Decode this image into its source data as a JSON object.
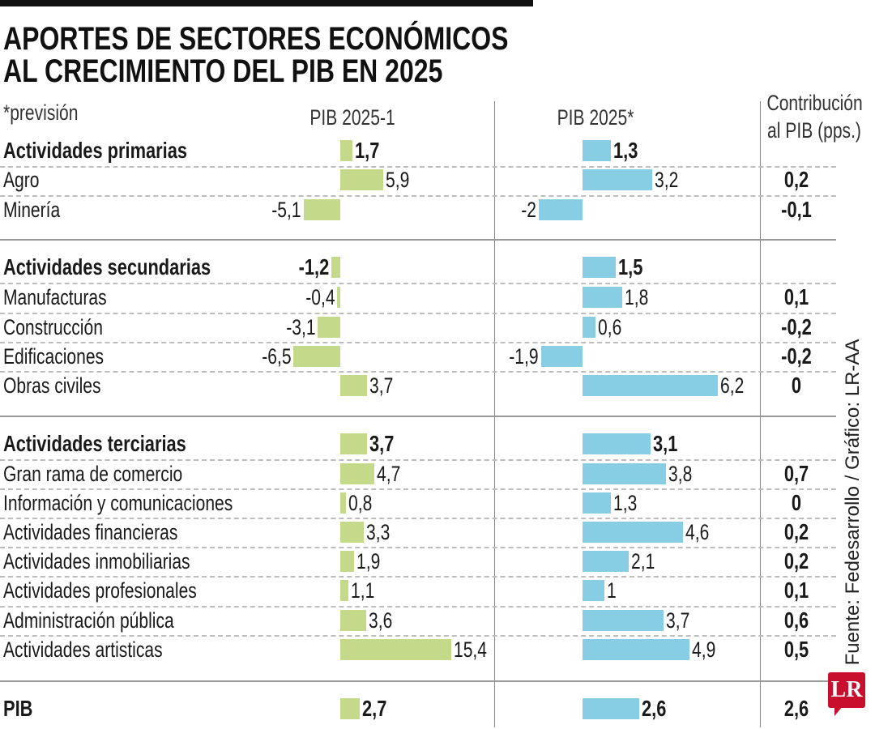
{
  "title_line1": "APORTES DE SECTORES ECONÓMICOS",
  "title_line2": "AL CRECIMIENTO DEL PIB EN 2025",
  "note": "*previsión",
  "source": "Fuente: Fedesarrollo / Gráfico: LR-AA",
  "logo": "LR",
  "colors": {
    "series1": "#c5d98a",
    "series2": "#87cde4",
    "text": "#1a1a1a"
  },
  "chart_data": {
    "type": "bar",
    "orientation": "horizontal",
    "columns": [
      "PIB 2025-1",
      "PIB 2025*",
      "Contribución al PIB (pps.)"
    ],
    "contribution_header_line1": "Contribución",
    "contribution_header_line2": "al PIB (pps.)",
    "series": [
      {
        "name": "PIB 2025-1",
        "color": "#c5d98a"
      },
      {
        "name": "PIB 2025*",
        "color": "#87cde4"
      }
    ],
    "rows": [
      {
        "label": "Actividades primarias",
        "group": true,
        "v1": "1,7",
        "v2": "1,3",
        "c": ""
      },
      {
        "label": "Agro",
        "group": false,
        "v1": "5,9",
        "v2": "3,2",
        "c": "0,2"
      },
      {
        "label": "Minería",
        "group": false,
        "v1": "-5,1",
        "v2": "-2",
        "c": "-0,1"
      },
      {
        "label": "Actividades secundarias",
        "group": true,
        "v1": "-1,2",
        "v2": "1,5",
        "c": ""
      },
      {
        "label": "Manufacturas",
        "group": false,
        "v1": "-0,4",
        "v2": "1,8",
        "c": "0,1"
      },
      {
        "label": "Construcción",
        "group": false,
        "v1": "-3,1",
        "v2": "0,6",
        "c": "-0,2"
      },
      {
        "label": "Edificaciones",
        "group": false,
        "v1": "-6,5",
        "v2": "-1,9",
        "c": "-0,2"
      },
      {
        "label": "Obras civiles",
        "group": false,
        "v1": "3,7",
        "v2": "6,2",
        "c": "0"
      },
      {
        "label": "Actividades terciarias",
        "group": true,
        "v1": "3,7",
        "v2": "3,1",
        "c": ""
      },
      {
        "label": "Gran rama de comercio",
        "group": false,
        "v1": "4,7",
        "v2": "3,8",
        "c": "0,7"
      },
      {
        "label": "Información y comunicaciones",
        "group": false,
        "v1": "0,8",
        "v2": "1,3",
        "c": "0"
      },
      {
        "label": "Actividades financieras",
        "group": false,
        "v1": "3,3",
        "v2": "4,6",
        "c": "0,2"
      },
      {
        "label": "Actividades inmobiliarias",
        "group": false,
        "v1": "1,9",
        "v2": "2,1",
        "c": "0,2"
      },
      {
        "label": "Actividades profesionales",
        "group": false,
        "v1": "1,1",
        "v2": "1",
        "c": "0,1"
      },
      {
        "label": "Administración pública",
        "group": false,
        "v1": "3,6",
        "v2": "3,7",
        "c": "0,6"
      },
      {
        "label": "Actividades artisticas",
        "group": false,
        "v1": "15,4",
        "v2": "4,9",
        "c": "0,5"
      },
      {
        "label": "PIB",
        "group": true,
        "v1": "2,7",
        "v2": "2,6",
        "c": "2,6"
      }
    ]
  }
}
